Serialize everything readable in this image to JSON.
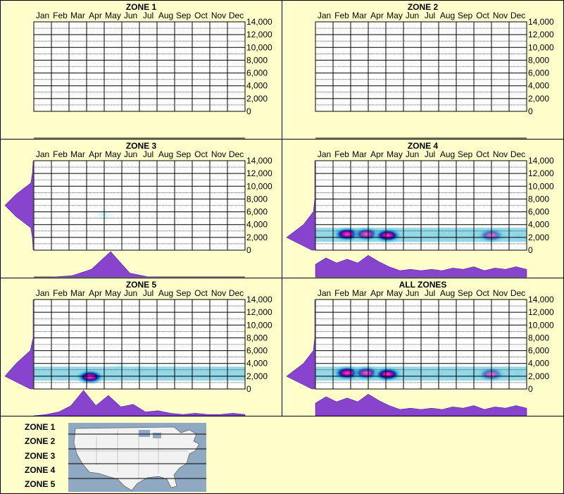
{
  "months": [
    "Jan",
    "Feb",
    "Mar",
    "Apr",
    "May",
    "Jun",
    "Jul",
    "Aug",
    "Sep",
    "Oct",
    "Nov",
    "Dec"
  ],
  "y_ticks": [
    "14,000",
    "12,000",
    "10,000",
    "8,000",
    "6,000",
    "4,000",
    "2,000",
    "0"
  ],
  "colors": {
    "background": "#ffffcc",
    "density": "#8844cc",
    "grid": "#000000"
  },
  "chart_data": [
    {
      "id": "z1",
      "type": "heatmap",
      "title": "ZONE 1",
      "x": [
        "Jan",
        "Feb",
        "Mar",
        "Apr",
        "May",
        "Jun",
        "Jul",
        "Aug",
        "Sep",
        "Oct",
        "Nov",
        "Dec"
      ],
      "ylim": [
        0,
        14000
      ],
      "hotspots": [],
      "month_density": [],
      "elev_density": []
    },
    {
      "id": "z2",
      "type": "heatmap",
      "title": "ZONE 2",
      "x": [
        "Jan",
        "Feb",
        "Mar",
        "Apr",
        "May",
        "Jun",
        "Jul",
        "Aug",
        "Sep",
        "Oct",
        "Nov",
        "Dec"
      ],
      "ylim": [
        0,
        14000
      ],
      "hotspots": [],
      "month_density": [],
      "elev_density": []
    },
    {
      "id": "z3",
      "type": "heatmap",
      "title": "ZONE 3",
      "x": [
        "Jan",
        "Feb",
        "Mar",
        "Apr",
        "May",
        "Jun",
        "Jul",
        "Aug",
        "Sep",
        "Oct",
        "Nov",
        "Dec"
      ],
      "ylim": [
        0,
        14000
      ],
      "hotspots": [
        {
          "month": 4.5,
          "elev": 5500,
          "intensity": 0.2
        }
      ],
      "month_density": [
        0,
        0,
        0.05,
        0.3,
        1.0,
        0.15,
        0,
        0,
        0,
        0,
        0,
        0
      ],
      "elev_density": [
        0,
        0.02,
        0.08,
        0.6,
        1.0,
        0.6,
        0.08,
        0.02,
        0
      ]
    },
    {
      "id": "z4",
      "type": "heatmap",
      "title": "ZONE 4",
      "x": [
        "Jan",
        "Feb",
        "Mar",
        "Apr",
        "May",
        "Jun",
        "Jul",
        "Aug",
        "Sep",
        "Oct",
        "Nov",
        "Dec"
      ],
      "ylim": [
        0,
        14000
      ],
      "hotspots": [
        {
          "month": 2.3,
          "elev": 2500,
          "intensity": 1.0
        },
        {
          "month": 3.4,
          "elev": 2500,
          "intensity": 0.75
        },
        {
          "month": 4.6,
          "elev": 2300,
          "intensity": 1.0
        },
        {
          "month": 7.5,
          "elev": 2300,
          "intensity": 0.4
        },
        {
          "month": 9.5,
          "elev": 2300,
          "intensity": 0.4
        },
        {
          "month": 10.5,
          "elev": 2300,
          "intensity": 0.55
        },
        {
          "month": 11.3,
          "elev": 2300,
          "intensity": 0.4
        },
        {
          "month": 12,
          "elev": 2300,
          "intensity": 0.45
        }
      ],
      "month_density": [
        0.5,
        0.75,
        0.55,
        0.7,
        0.55,
        0.85,
        0.6,
        0.4,
        0.25,
        0.3,
        0.25,
        0.3,
        0.25,
        0.35,
        0.3,
        0.4,
        0.25,
        0.35,
        0.3,
        0.4,
        0.3
      ],
      "elev_density": [
        0.1,
        1.0,
        0.4,
        0.05,
        0,
        0,
        0,
        0
      ]
    },
    {
      "id": "z5",
      "type": "heatmap",
      "title": "ZONE 5",
      "x": [
        "Jan",
        "Feb",
        "Mar",
        "Apr",
        "May",
        "Jun",
        "Jul",
        "Aug",
        "Sep",
        "Oct",
        "Nov",
        "Dec"
      ],
      "ylim": [
        0,
        14000
      ],
      "hotspots": [
        {
          "month": 3.7,
          "elev": 1900,
          "intensity": 1.0
        },
        {
          "month": 5.4,
          "elev": 3400,
          "intensity": 0.35
        },
        {
          "month": 6.5,
          "elev": 3000,
          "intensity": 0.15
        },
        {
          "month": 7.8,
          "elev": 3000,
          "intensity": 0.3
        }
      ],
      "month_density": [
        0,
        0.05,
        0.15,
        0.4,
        1.0,
        0.4,
        0.8,
        0.35,
        0.45,
        0.15,
        0.2,
        0.1,
        0.05,
        0.1,
        0.05,
        0.05,
        0.1,
        0.05
      ],
      "elev_density": [
        0.1,
        1.0,
        0.6,
        0.1,
        0,
        0,
        0,
        0
      ]
    },
    {
      "id": "all",
      "type": "heatmap",
      "title": "ALL ZONES",
      "x": [
        "Jan",
        "Feb",
        "Mar",
        "Apr",
        "May",
        "Jun",
        "Jul",
        "Aug",
        "Sep",
        "Oct",
        "Nov",
        "Dec"
      ],
      "ylim": [
        0,
        14000
      ],
      "hotspots": [
        {
          "month": 2.3,
          "elev": 2500,
          "intensity": 1.0
        },
        {
          "month": 3.4,
          "elev": 2500,
          "intensity": 0.75
        },
        {
          "month": 4.6,
          "elev": 2300,
          "intensity": 1.0
        },
        {
          "month": 7.5,
          "elev": 2300,
          "intensity": 0.4
        },
        {
          "month": 9.5,
          "elev": 2300,
          "intensity": 0.4
        },
        {
          "month": 10.5,
          "elev": 2300,
          "intensity": 0.55
        },
        {
          "month": 11.3,
          "elev": 2300,
          "intensity": 0.4
        },
        {
          "month": 12,
          "elev": 2300,
          "intensity": 0.45
        }
      ],
      "month_density": [
        0.5,
        0.75,
        0.55,
        0.7,
        0.55,
        0.85,
        0.6,
        0.4,
        0.25,
        0.3,
        0.25,
        0.3,
        0.25,
        0.35,
        0.3,
        0.4,
        0.25,
        0.35,
        0.3,
        0.4,
        0.3
      ],
      "elev_density": [
        0.1,
        1.0,
        0.4,
        0.05,
        0,
        0,
        0,
        0
      ]
    }
  ],
  "legend": {
    "zones": [
      "ZONE 1",
      "ZONE 2",
      "ZONE 3",
      "ZONE 4",
      "ZONE 5"
    ]
  }
}
